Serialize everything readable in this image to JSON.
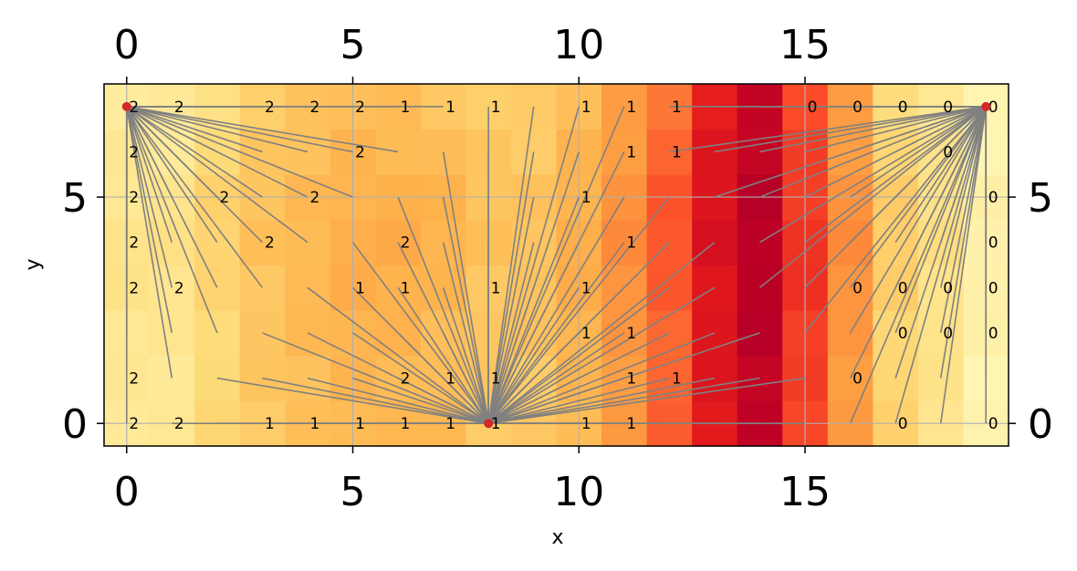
{
  "chart_data": {
    "type": "heatmap",
    "title": "",
    "xlabel": "x",
    "ylabel": "y",
    "xlim": [
      -0.5,
      19.5
    ],
    "ylim": [
      -0.5,
      7.5
    ],
    "x_ticks": [
      0,
      5,
      10,
      15
    ],
    "y_ticks": [
      0,
      5
    ],
    "x_tick_labels": [
      "0",
      "5",
      "10",
      "15"
    ],
    "y_tick_labels": [
      "0",
      "5"
    ],
    "x_ticks_top": true,
    "y_ticks_right": true,
    "grid": true,
    "colormap": "YlOrRd",
    "colormap_stops": [
      "#ffffcc",
      "#ffeda0",
      "#fed976",
      "#feb24c",
      "#fd8d3c",
      "#fc4e2a",
      "#e31a1c",
      "#bd0026",
      "#800026"
    ],
    "heat_columns": [
      0.16,
      0.16,
      0.24,
      0.3,
      0.33,
      0.36,
      0.36,
      0.34,
      0.3,
      0.3,
      0.36,
      0.46,
      0.58,
      0.76,
      0.86,
      0.66,
      0.46,
      0.26,
      0.18,
      0.08
    ],
    "heat_row_modifiers": [
      0.0,
      0.0,
      0.01,
      0.02,
      0.03,
      0.02,
      0.0,
      -0.02
    ],
    "reference_nodes": [
      {
        "x": 0,
        "y": 7,
        "color": "#d62728"
      },
      {
        "x": 8,
        "y": 0,
        "color": "#d62728"
      },
      {
        "x": 19,
        "y": 7,
        "color": "#d62728"
      }
    ],
    "link_color": "#808080",
    "cell_labels": [
      {
        "x": 0,
        "y": 7,
        "text": "2"
      },
      {
        "x": 1,
        "y": 7,
        "text": "2"
      },
      {
        "x": 3,
        "y": 7,
        "text": "2"
      },
      {
        "x": 4,
        "y": 7,
        "text": "2"
      },
      {
        "x": 5,
        "y": 7,
        "text": "2"
      },
      {
        "x": 6,
        "y": 7,
        "text": "1"
      },
      {
        "x": 7,
        "y": 7,
        "text": "1"
      },
      {
        "x": 8,
        "y": 7,
        "text": "1"
      },
      {
        "x": 10,
        "y": 7,
        "text": "1"
      },
      {
        "x": 11,
        "y": 7,
        "text": "1"
      },
      {
        "x": 12,
        "y": 7,
        "text": "1"
      },
      {
        "x": 15,
        "y": 7,
        "text": "0"
      },
      {
        "x": 16,
        "y": 7,
        "text": "0"
      },
      {
        "x": 17,
        "y": 7,
        "text": "0"
      },
      {
        "x": 18,
        "y": 7,
        "text": "0"
      },
      {
        "x": 19,
        "y": 7,
        "text": "0"
      },
      {
        "x": 0,
        "y": 6,
        "text": "2"
      },
      {
        "x": 5,
        "y": 6,
        "text": "2"
      },
      {
        "x": 11,
        "y": 6,
        "text": "1"
      },
      {
        "x": 12,
        "y": 6,
        "text": "1"
      },
      {
        "x": 18,
        "y": 6,
        "text": "0"
      },
      {
        "x": 0,
        "y": 5,
        "text": "2"
      },
      {
        "x": 2,
        "y": 5,
        "text": "2"
      },
      {
        "x": 4,
        "y": 5,
        "text": "2"
      },
      {
        "x": 10,
        "y": 5,
        "text": "1"
      },
      {
        "x": 19,
        "y": 5,
        "text": "0"
      },
      {
        "x": 0,
        "y": 4,
        "text": "2"
      },
      {
        "x": 3,
        "y": 4,
        "text": "2"
      },
      {
        "x": 6,
        "y": 4,
        "text": "2"
      },
      {
        "x": 11,
        "y": 4,
        "text": "1"
      },
      {
        "x": 19,
        "y": 4,
        "text": "0"
      },
      {
        "x": 0,
        "y": 3,
        "text": "2"
      },
      {
        "x": 1,
        "y": 3,
        "text": "2"
      },
      {
        "x": 5,
        "y": 3,
        "text": "1"
      },
      {
        "x": 6,
        "y": 3,
        "text": "1"
      },
      {
        "x": 8,
        "y": 3,
        "text": "1"
      },
      {
        "x": 10,
        "y": 3,
        "text": "1"
      },
      {
        "x": 16,
        "y": 3,
        "text": "0"
      },
      {
        "x": 17,
        "y": 3,
        "text": "0"
      },
      {
        "x": 18,
        "y": 3,
        "text": "0"
      },
      {
        "x": 19,
        "y": 3,
        "text": "0"
      },
      {
        "x": 10,
        "y": 2,
        "text": "1"
      },
      {
        "x": 11,
        "y": 2,
        "text": "1"
      },
      {
        "x": 17,
        "y": 2,
        "text": "0"
      },
      {
        "x": 18,
        "y": 2,
        "text": "0"
      },
      {
        "x": 19,
        "y": 2,
        "text": "0"
      },
      {
        "x": 0,
        "y": 1,
        "text": "2"
      },
      {
        "x": 6,
        "y": 1,
        "text": "2"
      },
      {
        "x": 7,
        "y": 1,
        "text": "1"
      },
      {
        "x": 8,
        "y": 1,
        "text": "1"
      },
      {
        "x": 11,
        "y": 1,
        "text": "1"
      },
      {
        "x": 12,
        "y": 1,
        "text": "1"
      },
      {
        "x": 16,
        "y": 1,
        "text": "0"
      },
      {
        "x": 0,
        "y": 0,
        "text": "2"
      },
      {
        "x": 1,
        "y": 0,
        "text": "2"
      },
      {
        "x": 3,
        "y": 0,
        "text": "1"
      },
      {
        "x": 4,
        "y": 0,
        "text": "1"
      },
      {
        "x": 5,
        "y": 0,
        "text": "1"
      },
      {
        "x": 6,
        "y": 0,
        "text": "1"
      },
      {
        "x": 7,
        "y": 0,
        "text": "1"
      },
      {
        "x": 8,
        "y": 0,
        "text": "1"
      },
      {
        "x": 10,
        "y": 0,
        "text": "1"
      },
      {
        "x": 11,
        "y": 0,
        "text": "1"
      },
      {
        "x": 17,
        "y": 0,
        "text": "0"
      },
      {
        "x": 19,
        "y": 0,
        "text": "0"
      }
    ]
  }
}
